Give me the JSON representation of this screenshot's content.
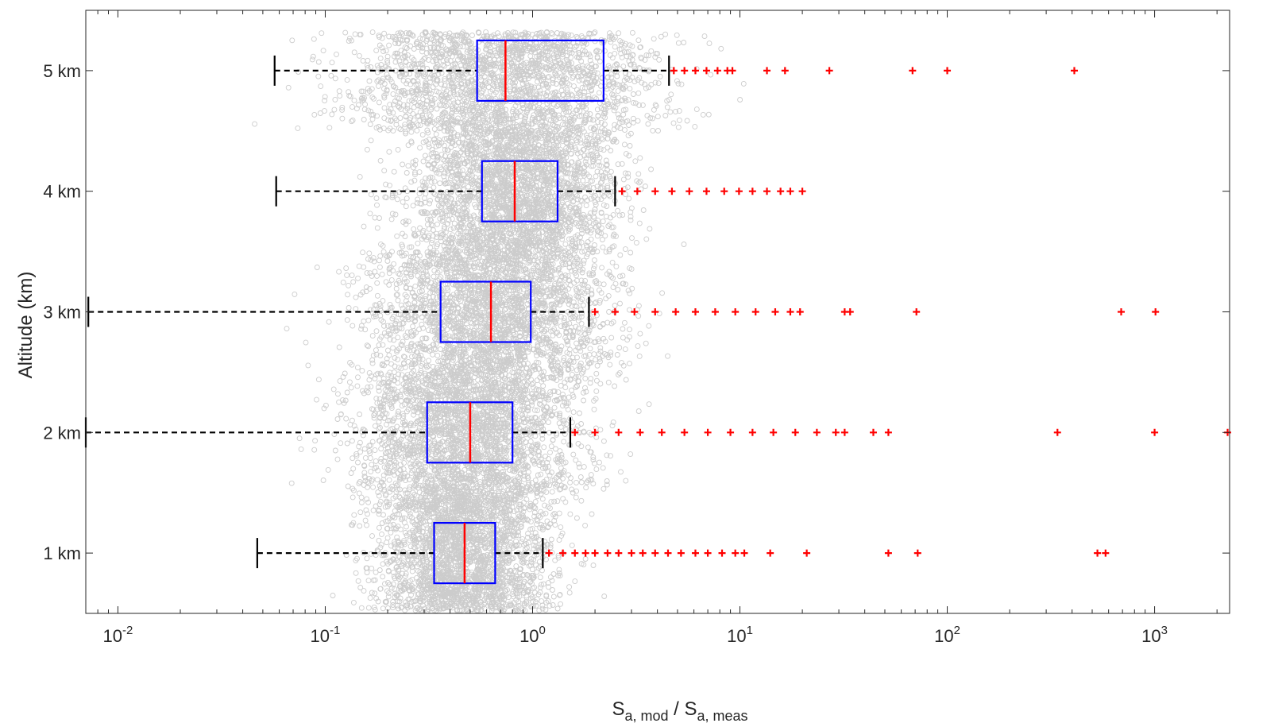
{
  "chart_data": {
    "type": "boxplot",
    "orientation": "horizontal",
    "xlabel": {
      "main": "S",
      "sub1": "a, mod",
      "mid": " / S",
      "sub2": "a, meas"
    },
    "ylabel": "Altitude (km)",
    "xscale": "log",
    "xlim": [
      0.007,
      2300
    ],
    "ylim": [
      0.5,
      5.5
    ],
    "x_ticks": [
      {
        "value": 0.01,
        "base": "10",
        "exp": "-2"
      },
      {
        "value": 0.1,
        "base": "10",
        "exp": "-1"
      },
      {
        "value": 1,
        "base": "10",
        "exp": "0"
      },
      {
        "value": 10,
        "base": "10",
        "exp": "1"
      },
      {
        "value": 100,
        "base": "10",
        "exp": "2"
      },
      {
        "value": 1000,
        "base": "10",
        "exp": "3"
      }
    ],
    "categories": [
      {
        "label": "1 km",
        "y": 1
      },
      {
        "label": "2 km",
        "y": 2
      },
      {
        "label": "3 km",
        "y": 3
      },
      {
        "label": "4 km",
        "y": 4
      },
      {
        "label": "5 km",
        "y": 5
      }
    ],
    "boxes": [
      {
        "category": "1 km",
        "whisker_low": 0.047,
        "q1": 0.335,
        "median": 0.47,
        "q3": 0.66,
        "whisker_high": 1.12,
        "outliers": [
          1.2,
          1.4,
          1.6,
          1.8,
          2.0,
          2.3,
          2.6,
          3.0,
          3.4,
          3.9,
          4.5,
          5.2,
          6.1,
          7.0,
          8.2,
          9.5,
          10.5,
          14,
          21,
          52,
          72,
          530,
          580
        ]
      },
      {
        "category": "2 km",
        "whisker_low": 0.007,
        "q1": 0.31,
        "median": 0.5,
        "q3": 0.8,
        "whisker_high": 1.52,
        "outliers": [
          1.6,
          2,
          2.6,
          3.3,
          4.2,
          5.4,
          7,
          9,
          11.5,
          14.5,
          18.5,
          23.5,
          29,
          32,
          44,
          52,
          340,
          1000,
          2250
        ]
      },
      {
        "category": "3 km",
        "whisker_low": 0.0072,
        "q1": 0.36,
        "median": 0.63,
        "q3": 0.98,
        "whisker_high": 1.87,
        "outliers": [
          2,
          2.5,
          3.1,
          3.9,
          4.9,
          6.1,
          7.6,
          9.5,
          11.9,
          14.8,
          17.5,
          19.5,
          32,
          34,
          71,
          690,
          1010
        ]
      },
      {
        "category": "4 km",
        "whisker_low": 0.058,
        "q1": 0.57,
        "median": 0.82,
        "q3": 1.32,
        "whisker_high": 2.5,
        "outliers": [
          2.7,
          3.2,
          3.9,
          4.7,
          5.7,
          6.9,
          8.4,
          9.9,
          11.5,
          13.5,
          15.7,
          17.5,
          20
        ]
      },
      {
        "category": "5 km",
        "whisker_low": 0.057,
        "q1": 0.54,
        "median": 0.74,
        "q3": 2.2,
        "whisker_high": 4.55,
        "outliers": [
          4.8,
          5.4,
          6.1,
          6.9,
          7.8,
          8.7,
          9.2,
          13.5,
          16.5,
          27,
          68,
          100,
          410
        ]
      }
    ],
    "colors": {
      "scatter": "#cccccc",
      "box": "#0000ff",
      "median": "#ff0000",
      "whisker": "#000000",
      "outlier": "#ff0000",
      "axis": "#262626"
    },
    "grid": false,
    "legend": "none"
  }
}
